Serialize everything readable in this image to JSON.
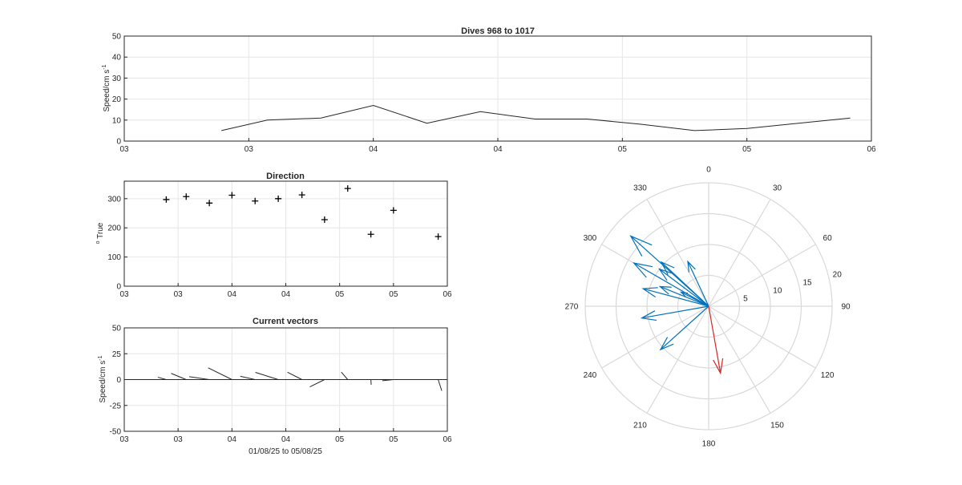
{
  "chart_data": [
    {
      "type": "line",
      "title": "Dives 968 to 1017",
      "xlabel": "",
      "ylabel": "Speed/cm s",
      "ylabel_sup": "-1",
      "ylim": [
        0,
        50
      ],
      "yticks": [
        0,
        10,
        20,
        30,
        40,
        50
      ],
      "xlim": [
        0,
        6
      ],
      "xtick_labels": [
        "03",
        "03",
        "04",
        "04",
        "05",
        "05",
        "06"
      ],
      "grid": true,
      "series": [
        {
          "x": [
            0.78,
            1.15,
            1.58,
            2.0,
            2.43,
            2.86,
            3.3,
            3.72,
            4.15,
            4.58,
            5.0,
            5.83
          ],
          "values": [
            5,
            10,
            11,
            17,
            8.5,
            14,
            10.5,
            10.5,
            8,
            5,
            6,
            11
          ]
        }
      ]
    },
    {
      "type": "scatter",
      "title": "Direction",
      "xlabel": "",
      "ylabel": "True",
      "ylabel_sup": "o",
      "ylim": [
        0,
        360
      ],
      "yticks": [
        0,
        100,
        200,
        300
      ],
      "xlim": [
        0,
        6
      ],
      "xtick_labels": [
        "03",
        "03",
        "04",
        "04",
        "05",
        "05",
        "06"
      ],
      "grid": true,
      "series": [
        {
          "x": [
            0.78,
            1.15,
            1.58,
            2.0,
            2.43,
            2.86,
            3.3,
            3.72,
            4.15,
            4.58,
            5.0,
            5.83
          ],
          "values": [
            297,
            307,
            285,
            312,
            292,
            300,
            313,
            228,
            335,
            178,
            260,
            170
          ]
        }
      ]
    },
    {
      "type": "line",
      "subtype": "stick",
      "title": "Current vectors",
      "xlabel": "01/08/25 to 05/08/25",
      "ylabel": "Speed/cm s",
      "ylabel_sup": "-1",
      "ylim": [
        -50,
        50
      ],
      "yticks": [
        -50,
        -25,
        0,
        25,
        50
      ],
      "xlim": [
        0,
        6
      ],
      "xtick_labels": [
        "03",
        "03",
        "04",
        "04",
        "05",
        "05",
        "06"
      ],
      "grid": true,
      "series": [
        {
          "x": [
            0.78,
            1.15,
            1.58,
            2.0,
            2.43,
            2.86,
            3.3,
            3.72,
            4.15,
            4.58,
            5.0,
            5.83
          ],
          "speed": [
            5,
            10,
            11,
            17,
            8.5,
            14,
            10.5,
            10.5,
            8,
            5,
            6,
            11
          ],
          "direction": [
            297,
            307,
            285,
            312,
            292,
            300,
            313,
            228,
            335,
            178,
            260,
            170
          ]
        }
      ]
    },
    {
      "type": "scatter",
      "subtype": "compass",
      "title": "",
      "rlim": [
        0,
        20
      ],
      "rtick_labels": [
        "5",
        "10",
        "15",
        "20"
      ],
      "angle_labels": [
        "0",
        "30",
        "60",
        "90",
        "120",
        "150",
        "180",
        "210",
        "240",
        "270",
        "300",
        "330"
      ],
      "series": [
        {
          "color": "#0072bd",
          "speed": [
            5,
            10,
            11,
            17,
            8.5,
            14,
            10.5,
            10.5,
            8,
            11
          ],
          "direction": [
            297,
            307,
            285,
            312,
            292,
            300,
            313,
            228,
            335,
            260
          ]
        },
        {
          "color": "#d62728",
          "speed": [
            11
          ],
          "direction": [
            170
          ]
        }
      ]
    }
  ]
}
